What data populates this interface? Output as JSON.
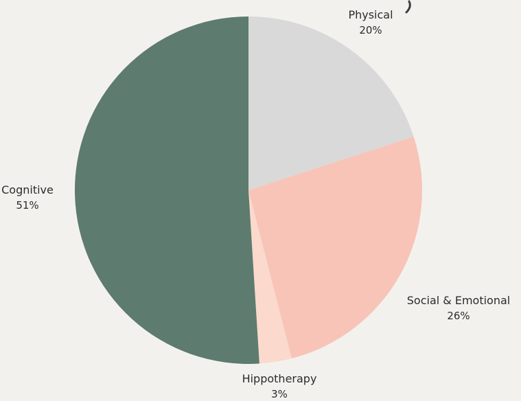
{
  "chart_data": {
    "type": "pie",
    "slices": [
      {
        "label": "Physical",
        "value": 20,
        "value_label": "20%",
        "color": "#d9d9d9"
      },
      {
        "label": "Social & Emotional",
        "value": 26,
        "value_label": "26%",
        "color": "#f8c4b8"
      },
      {
        "label": "Hippotherapy",
        "value": 3,
        "value_label": "3%",
        "color": "#fbd9cc"
      },
      {
        "label": "Cognitive",
        "value": 51,
        "value_label": "51%",
        "color": "#5d7b6f"
      }
    ],
    "start_angle_deg": 0,
    "direction": "clockwise",
    "legend": "none"
  }
}
